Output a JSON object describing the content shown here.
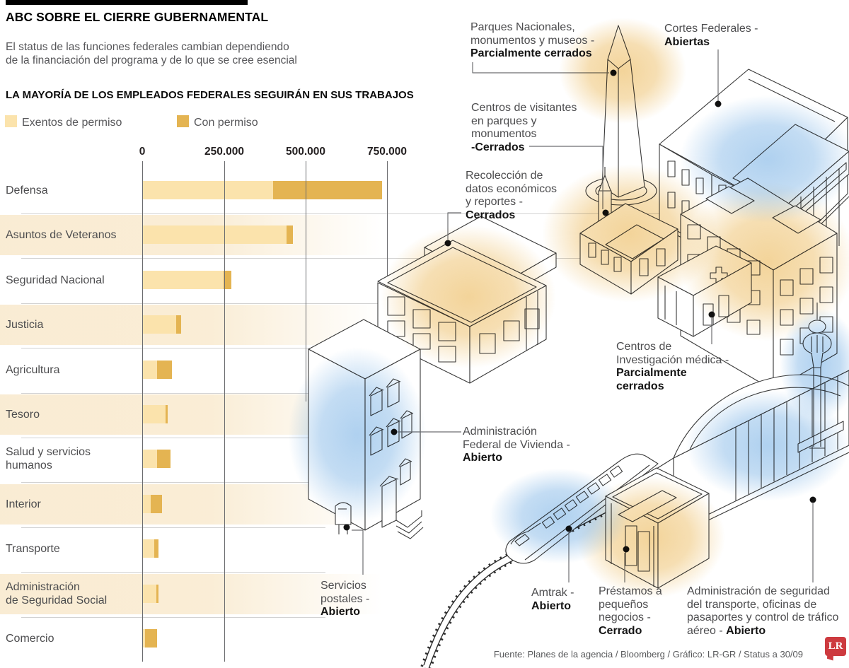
{
  "header": {
    "title": "ABC SOBRE EL CIERRE GUBERNAMENTAL",
    "subtitle_line1": "El status de las funciones federales cambian dependiendo",
    "subtitle_line2": "de la financiación del programa y de lo que se cree esencial"
  },
  "chart": {
    "title": "LA MAYORÍA DE LOS EMPLEADOS FEDERALES SEGUIRÁN EN SUS TRABAJOS",
    "legend": [
      {
        "label": "Exentos de permiso",
        "color": "#FBE3AC"
      },
      {
        "label": "Con permiso",
        "color": "#E4B452"
      }
    ]
  },
  "chart_data": {
    "type": "bar",
    "orientation": "horizontal",
    "stacked": true,
    "title": "LA MAYORÍA DE LOS EMPLEADOS FEDERALES SEGUIRÁN EN SUS TRABAJOS",
    "categories": [
      "Defensa",
      "Asuntos de Veteranos",
      "Seguridad Nacional",
      "Justicia",
      "Agricultura",
      "Tesoro",
      "Salud y servicios humanos",
      "Interior",
      "Transporte",
      "Administración de Seguridad Social",
      "Comercio"
    ],
    "category_lines": [
      [
        "Defensa"
      ],
      [
        "Asuntos de Veteranos"
      ],
      [
        "Seguridad Nacional"
      ],
      [
        "Justicia"
      ],
      [
        "Agricultura"
      ],
      [
        "Tesoro"
      ],
      [
        "Salud y servicios",
        "humanos"
      ],
      [
        "Interior"
      ],
      [
        "Transporte"
      ],
      [
        "Administración",
        "de Seguridad Social"
      ],
      [
        "Comercio"
      ]
    ],
    "series": [
      {
        "name": "Exentos de permiso",
        "color": "#FBE3AC",
        "values": [
          400000,
          443000,
          249000,
          105000,
          46000,
          72000,
          46000,
          25000,
          36000,
          43000,
          9000
        ]
      },
      {
        "name": "Con permiso",
        "color": "#E4B452",
        "values": [
          335000,
          18000,
          23000,
          14000,
          46000,
          6000,
          40000,
          35000,
          13000,
          7000,
          37000
        ]
      }
    ],
    "x_ticks": [
      "0",
      "250.000",
      "500.000",
      "750.000"
    ],
    "x_tick_values": [
      0,
      250000,
      500000,
      750000
    ],
    "xlim": [
      0,
      865000
    ],
    "grid": true,
    "legend_position": "top-left"
  },
  "illustration": {
    "labels": [
      {
        "id": "parques",
        "lines": [
          [
            {
              "t": "Parques Nacionales,"
            }
          ],
          [
            {
              "t": "monumentos y museos -"
            }
          ],
          [
            {
              "t": "Parcialmente cerrados",
              "b": true
            }
          ]
        ]
      },
      {
        "id": "cortes",
        "lines": [
          [
            {
              "t": "Cortes Federales -"
            }
          ],
          [
            {
              "t": "Abiertas",
              "b": true
            }
          ]
        ]
      },
      {
        "id": "visitantes",
        "lines": [
          [
            {
              "t": "Centros de visitantes"
            }
          ],
          [
            {
              "t": "en parques y"
            }
          ],
          [
            {
              "t": "monumentos"
            }
          ],
          [
            {
              "t": "-Cerrados",
              "b": true
            }
          ]
        ]
      },
      {
        "id": "recoleccion",
        "lines": [
          [
            {
              "t": "Recolección de"
            }
          ],
          [
            {
              "t": "datos económicos"
            }
          ],
          [
            {
              "t": "y reportes -"
            }
          ],
          [
            {
              "t": "Cerrados",
              "b": true
            }
          ]
        ]
      },
      {
        "id": "medica",
        "lines": [
          [
            {
              "t": "Centros de"
            }
          ],
          [
            {
              "t": "Investigación médica -"
            }
          ],
          [
            {
              "t": "Parcialmente",
              "b": true
            }
          ],
          [
            {
              "t": "cerrados",
              "b": true
            }
          ]
        ]
      },
      {
        "id": "vivienda",
        "lines": [
          [
            {
              "t": "Administración"
            }
          ],
          [
            {
              "t": "Federal de Vivienda -"
            }
          ],
          [
            {
              "t": "Abierto",
              "b": true
            }
          ]
        ]
      },
      {
        "id": "postales",
        "lines": [
          [
            {
              "t": "Servicios"
            }
          ],
          [
            {
              "t": "postales -"
            }
          ],
          [
            {
              "t": "Abierto",
              "b": true
            }
          ]
        ]
      },
      {
        "id": "amtrak",
        "lines": [
          [
            {
              "t": "Amtrak -"
            }
          ],
          [
            {
              "t": "Abierto",
              "b": true
            }
          ]
        ]
      },
      {
        "id": "prestamos",
        "lines": [
          [
            {
              "t": "Préstamos a"
            }
          ],
          [
            {
              "t": "pequeños"
            }
          ],
          [
            {
              "t": "negocios -"
            }
          ],
          [
            {
              "t": "Cerrado",
              "b": true
            }
          ]
        ]
      },
      {
        "id": "tsa",
        "lines": [
          [
            {
              "t": "Administración de seguridad"
            }
          ],
          [
            {
              "t": "del transporte, oficinas de"
            }
          ],
          [
            {
              "t": "pasaportes y control de tráfico"
            }
          ],
          [
            {
              "t": "aéreo - "
            },
            {
              "t": "Abierto",
              "b": true
            }
          ]
        ]
      }
    ]
  },
  "footer": {
    "source": "Fuente: Planes de la agencia / Bloomberg / Gráfico: LR-GR / Status a 30/09",
    "logo_text": "LR"
  },
  "colors": {
    "bar_light": "#FBE3AC",
    "bar_dark": "#E4B452",
    "stripe": "#F9EBD1",
    "gridline": "#6A6B6E",
    "glow_orange": "#EBB756",
    "glow_blue": "#7AB2E5",
    "logo_red": "#CD3A3F"
  }
}
